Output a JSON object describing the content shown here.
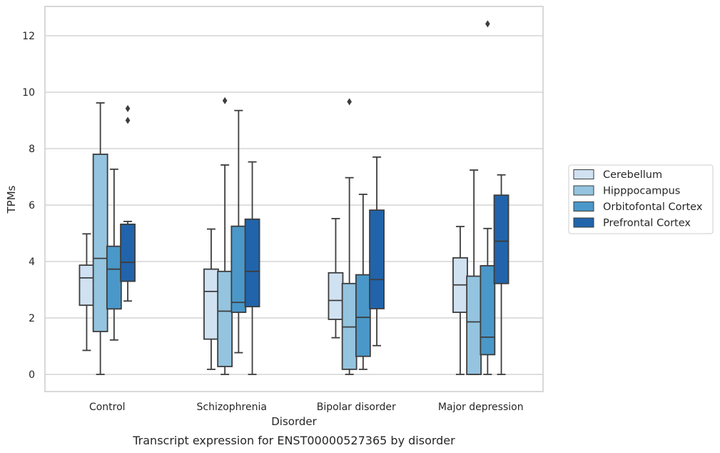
{
  "chart_data": {
    "type": "box",
    "title": "",
    "caption": "Transcript expression for ENST00000527365 by disorder",
    "xlabel": "Disorder",
    "ylabel": "TPMs",
    "ylim": [
      -0.6,
      13.0
    ],
    "yticks": [
      0,
      2,
      4,
      6,
      8,
      10,
      12
    ],
    "grid": "horizontal",
    "legend_position": "right",
    "categories": [
      "Control",
      "Schizophrenia",
      "Bipolar disorder",
      "Major depression"
    ],
    "series": [
      {
        "name": "Cerebellum",
        "color": "#d0e1f2",
        "boxes": [
          {
            "low": 0.85,
            "q1": 2.45,
            "median": 3.42,
            "q3": 3.87,
            "high": 4.98,
            "outliers": []
          },
          {
            "low": 0.18,
            "q1": 1.25,
            "median": 2.94,
            "q3": 3.73,
            "high": 5.15,
            "outliers": []
          },
          {
            "low": 1.3,
            "q1": 1.95,
            "median": 2.62,
            "q3": 3.6,
            "high": 5.52,
            "outliers": []
          },
          {
            "low": 0.0,
            "q1": 2.2,
            "median": 3.17,
            "q3": 4.13,
            "high": 5.24,
            "outliers": []
          }
        ]
      },
      {
        "name": "Hipppocampus",
        "color": "#94c4df",
        "boxes": [
          {
            "low": 0.0,
            "q1": 1.52,
            "median": 4.11,
            "q3": 7.8,
            "high": 9.62,
            "outliers": []
          },
          {
            "low": 0.0,
            "q1": 0.28,
            "median": 2.24,
            "q3": 3.65,
            "high": 7.42,
            "outliers": [
              9.7
            ]
          },
          {
            "low": 0.0,
            "q1": 0.18,
            "median": 1.68,
            "q3": 3.22,
            "high": 6.97,
            "outliers": [
              9.66
            ]
          },
          {
            "low": 0.0,
            "q1": 0.0,
            "median": 1.86,
            "q3": 3.48,
            "high": 7.24,
            "outliers": []
          }
        ]
      },
      {
        "name": "Orbitofontal Cortex",
        "color": "#4a98c9",
        "boxes": [
          {
            "low": 1.22,
            "q1": 2.32,
            "median": 3.73,
            "q3": 4.54,
            "high": 7.27,
            "outliers": []
          },
          {
            "low": 0.77,
            "q1": 2.2,
            "median": 2.55,
            "q3": 5.25,
            "high": 9.35,
            "outliers": []
          },
          {
            "low": 0.18,
            "q1": 0.64,
            "median": 2.02,
            "q3": 3.53,
            "high": 6.38,
            "outliers": []
          },
          {
            "low": 0.0,
            "q1": 0.7,
            "median": 1.32,
            "q3": 3.85,
            "high": 5.17,
            "outliers": [
              12.42
            ]
          }
        ]
      },
      {
        "name": "Prefrontal Cortex",
        "color": "#2164ab",
        "boxes": [
          {
            "low": 2.6,
            "q1": 3.3,
            "median": 3.97,
            "q3": 5.32,
            "high": 5.42,
            "outliers": [
              9.0,
              9.42
            ]
          },
          {
            "low": 0.0,
            "q1": 2.4,
            "median": 3.65,
            "q3": 5.5,
            "high": 7.53,
            "outliers": []
          },
          {
            "low": 1.02,
            "q1": 2.33,
            "median": 3.36,
            "q3": 5.82,
            "high": 7.7,
            "outliers": []
          },
          {
            "low": 0.0,
            "q1": 3.22,
            "median": 4.72,
            "q3": 6.35,
            "high": 7.07,
            "outliers": []
          }
        ]
      }
    ]
  }
}
